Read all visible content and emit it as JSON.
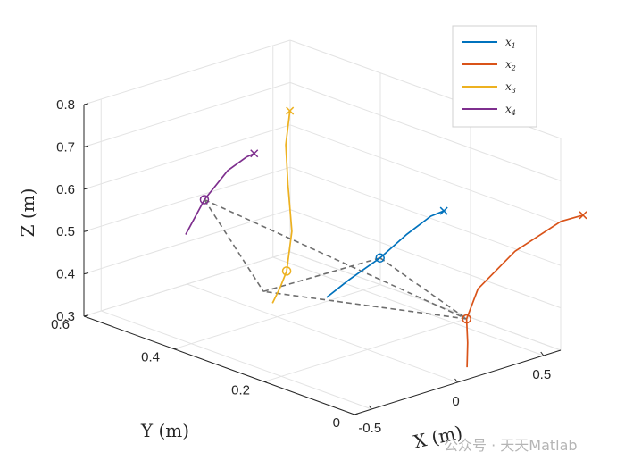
{
  "chart_data": {
    "type": "line3d",
    "xlabel": "X (m)",
    "ylabel": "Y (m)",
    "zlabel": "Z (m)",
    "x_ticks": [
      "-0.5",
      "0",
      "0.5"
    ],
    "y_ticks": [
      "0",
      "0.2",
      "0.4",
      "0.6"
    ],
    "z_ticks": [
      "0.3",
      "0.4",
      "0.5",
      "0.6",
      "0.7",
      "0.8"
    ],
    "xlim": [
      -0.6,
      0.6
    ],
    "ylim": [
      0,
      0.6
    ],
    "zlim": [
      0.3,
      0.8
    ],
    "grid": true,
    "legend_position": "top-right",
    "series": [
      {
        "name": "x",
        "sub": "1",
        "color": "#0072BD",
        "points": [
          [
            -0.08,
            0.26,
            0.41
          ],
          [
            0.0,
            0.24,
            0.45
          ],
          [
            0.1,
            0.21,
            0.5
          ],
          [
            0.2,
            0.19,
            0.55
          ],
          [
            0.29,
            0.17,
            0.59
          ],
          [
            0.34,
            0.16,
            0.6
          ]
        ]
      },
      {
        "name": "x",
        "sub": "2",
        "color": "#D95319",
        "points": [
          [
            0.16,
            0.04,
            0.3
          ],
          [
            0.19,
            0.05,
            0.35
          ],
          [
            0.21,
            0.06,
            0.4
          ],
          [
            0.25,
            0.05,
            0.47
          ],
          [
            0.36,
            0.01,
            0.56
          ],
          [
            0.47,
            -0.05,
            0.64
          ],
          [
            0.52,
            -0.08,
            0.66
          ]
        ]
      },
      {
        "name": "x",
        "sub": "3",
        "color": "#EDB120",
        "points": [
          [
            -0.08,
            0.38,
            0.35
          ],
          [
            -0.06,
            0.37,
            0.39
          ],
          [
            -0.05,
            0.36,
            0.43
          ],
          [
            -0.02,
            0.36,
            0.52
          ],
          [
            0.01,
            0.38,
            0.62
          ],
          [
            0.05,
            0.4,
            0.7
          ],
          [
            0.1,
            0.41,
            0.77
          ]
        ]
      },
      {
        "name": "x",
        "sub": "4",
        "color": "#7E2F8E",
        "points": [
          [
            -0.27,
            0.5,
            0.49
          ],
          [
            -0.24,
            0.47,
            0.58
          ],
          [
            -0.21,
            0.43,
            0.66
          ],
          [
            -0.18,
            0.4,
            0.7
          ],
          [
            -0.16,
            0.39,
            0.71
          ]
        ]
      }
    ]
  },
  "watermark": "公众号 · 天天Matlab"
}
